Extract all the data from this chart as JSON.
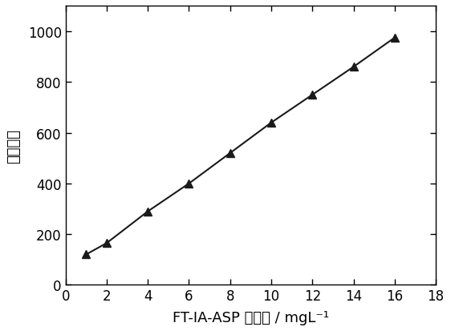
{
  "x_data": [
    1,
    2,
    4,
    6,
    8,
    10,
    12,
    14,
    16
  ],
  "y_data": [
    120,
    165,
    290,
    400,
    520,
    640,
    750,
    860,
    975
  ],
  "line_color": "#1a1a1a",
  "marker": "^",
  "marker_size": 7,
  "marker_facecolor": "#1a1a1a",
  "marker_edgecolor": "#1a1a1a",
  "line_width": 1.5,
  "xlabel_plain": "FT-IA-ASP 的浓度 / mgL⁻¹",
  "ylabel_plain": "荧光强度",
  "xlim": [
    0,
    18
  ],
  "ylim": [
    0,
    1100
  ],
  "xticks": [
    0,
    2,
    4,
    6,
    8,
    10,
    12,
    14,
    16,
    18
  ],
  "yticks": [
    0,
    200,
    400,
    600,
    800,
    1000
  ],
  "xlabel_fontsize": 13,
  "ylabel_fontsize": 13,
  "tick_fontsize": 12,
  "background_color": "#ffffff"
}
